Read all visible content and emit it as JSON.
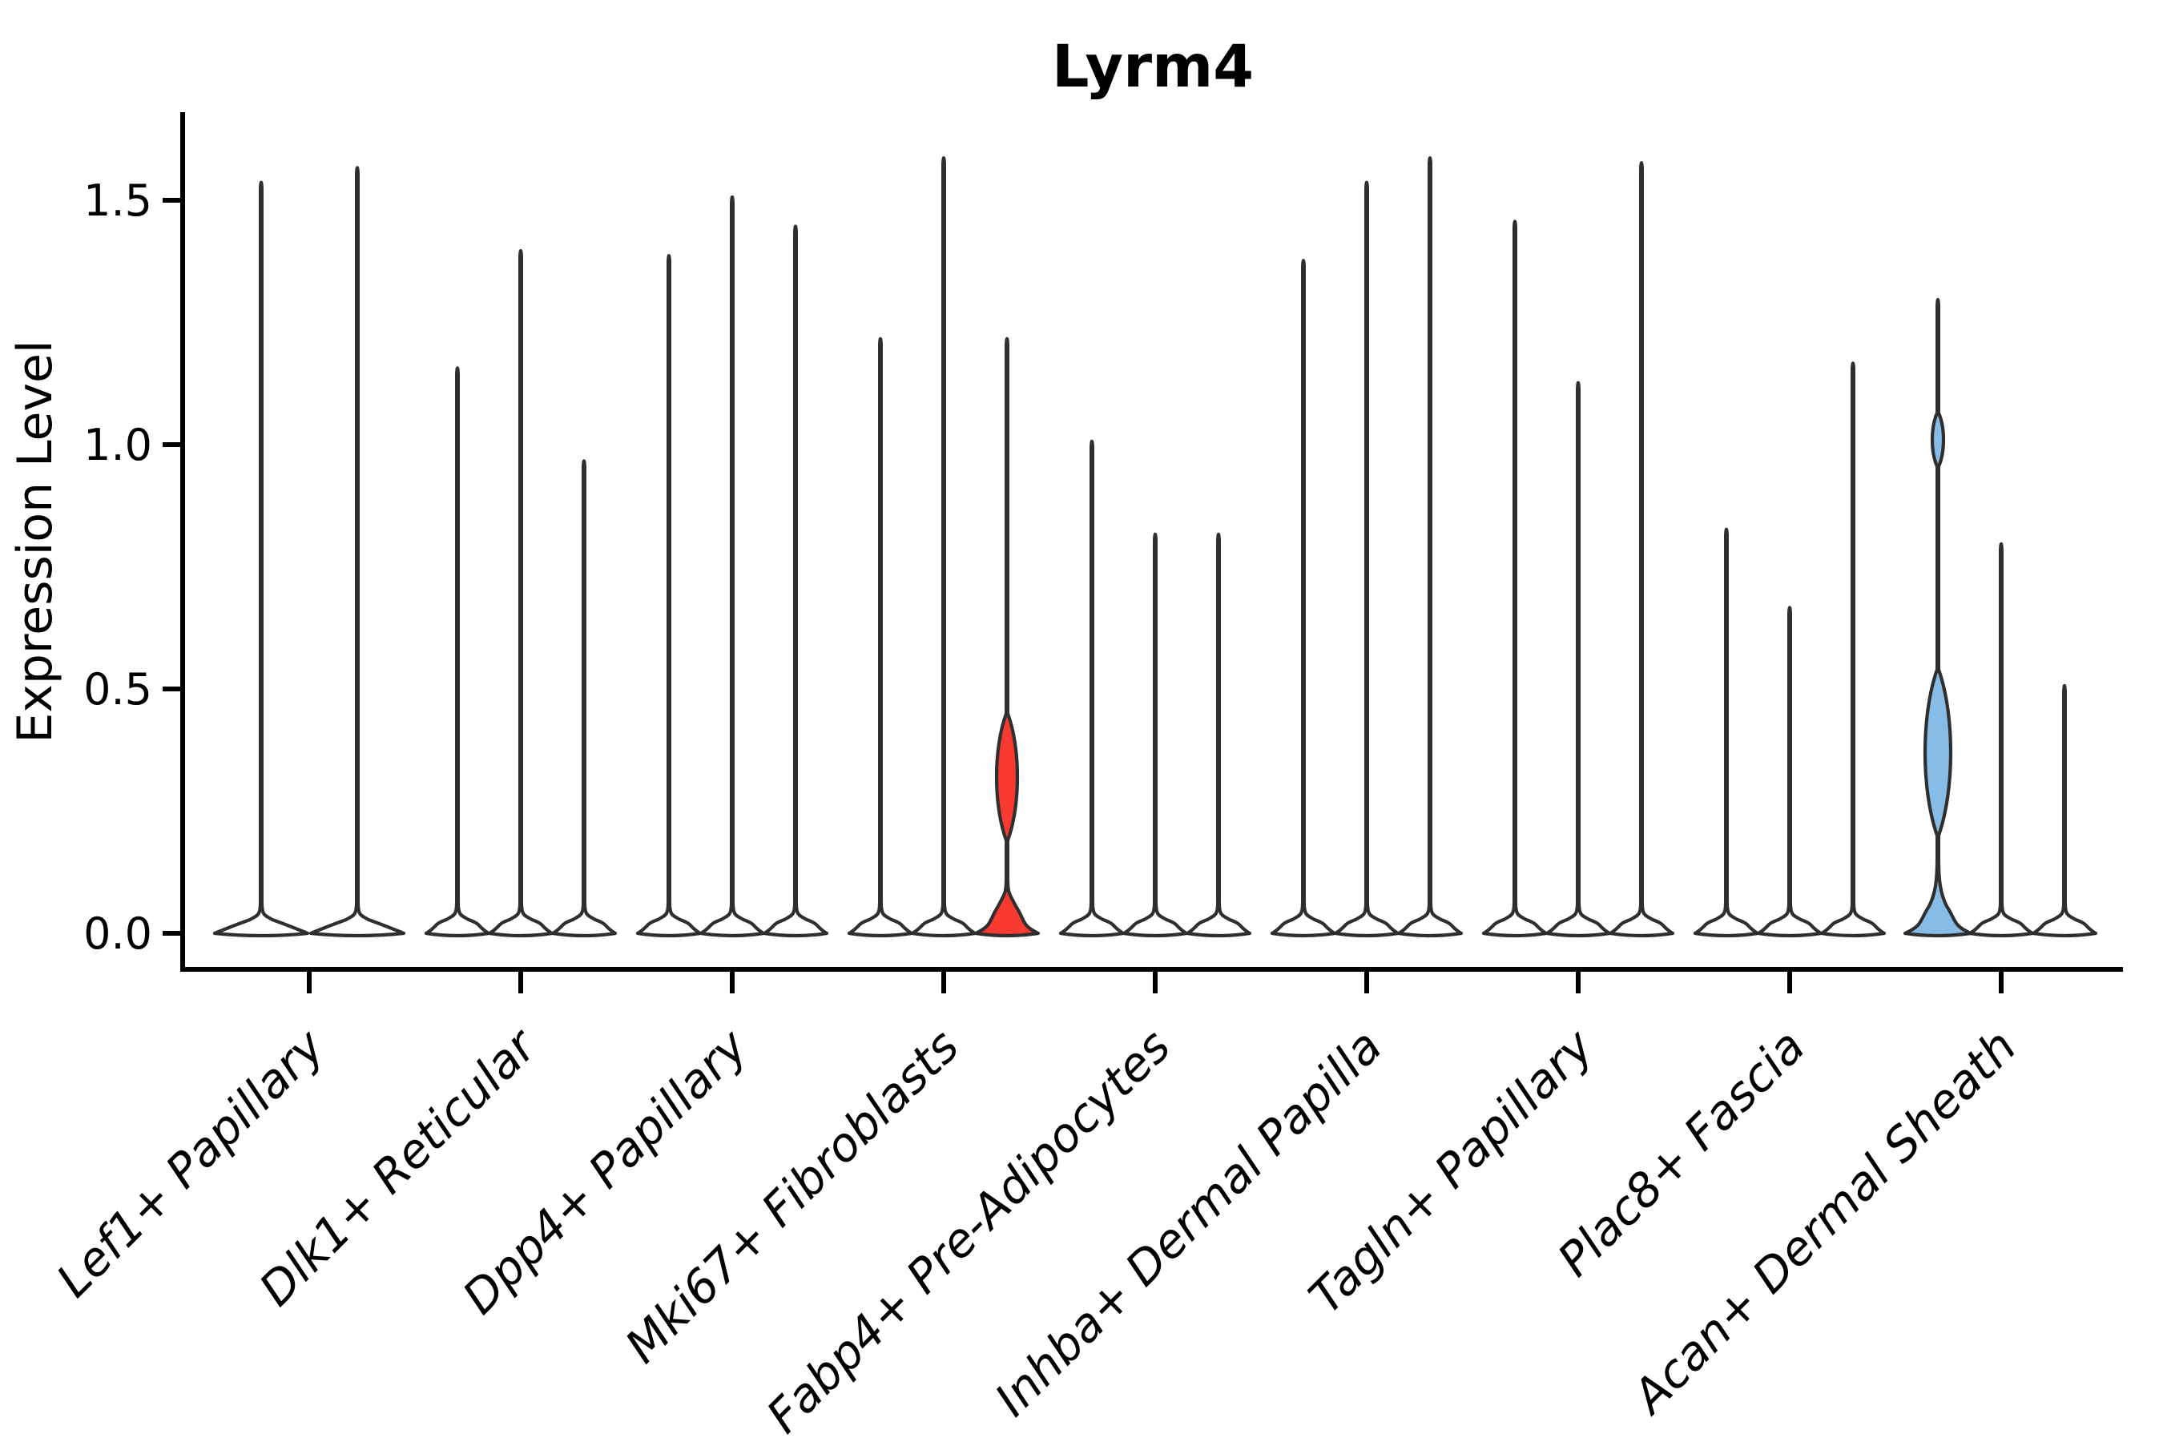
{
  "chart_data": {
    "type": "violin",
    "title": "Lyrm4",
    "ylabel": "Expression Level",
    "xlabel": "",
    "legend": "none",
    "grid": false,
    "ylim": [
      -0.07,
      1.71
    ],
    "ytick_values": [
      0.0,
      0.5,
      1.0,
      1.5
    ],
    "ytick_labels": [
      "0.0",
      "0.5",
      "1.0",
      "1.5"
    ],
    "categories": [
      "Lef1+ Papillary",
      "Dlk1+ Reticular",
      "Dpp4+ Papillary",
      "Mki67+ Fibroblasts",
      "Fabp4+ Pre-Adipocytes",
      "Inhba+ Dermal Papilla",
      "Tagln+ Papillary",
      "Plac8+ Fascia",
      "Acan+ Dermal Sheath"
    ],
    "colors": {
      "background": "#ffffff",
      "axis": "#000000",
      "violin_outline": "#2f2f2f",
      "violin_fill_default": "#ffffff",
      "highlight_red": "#f83a31",
      "highlight_blue": "#87bce6"
    },
    "description": "Violin plot of Lyrm4 expression; most violins collapse to a thin spike with nearly all mass at 0. One red highlighted violin in Mki67+ Fibroblasts and one blue highlighted violin in Acan+ Dermal Sheath show visible density bulges above 0.",
    "groups": [
      {
        "category": "Lef1+ Papillary",
        "violins": [
          {
            "offset": -60,
            "max": 1.54,
            "hw": 58
          },
          {
            "offset": 60,
            "max": 1.57,
            "hw": 58
          }
        ]
      },
      {
        "category": "Dlk1+ Reticular",
        "violins": [
          {
            "offset": -79,
            "max": 1.16
          },
          {
            "offset": 0,
            "max": 1.4
          },
          {
            "offset": 79,
            "max": 0.97
          }
        ]
      },
      {
        "category": "Dpp4+ Papillary",
        "violins": [
          {
            "offset": -79,
            "max": 1.39
          },
          {
            "offset": 0,
            "max": 1.51
          },
          {
            "offset": 79,
            "max": 1.45
          }
        ]
      },
      {
        "category": "Mki67+ Fibroblasts",
        "violins": [
          {
            "offset": -79,
            "max": 1.22
          },
          {
            "offset": 0,
            "max": 1.59
          },
          {
            "offset": 79,
            "max": 1.22,
            "fill": "highlight_red",
            "mound": true,
            "flare": 70,
            "bulges": [
              {
                "v": 0.32,
                "s": 0.13,
                "w": 13
              }
            ]
          }
        ]
      },
      {
        "category": "Fabp4+ Pre-Adipocytes",
        "violins": [
          {
            "offset": -79,
            "max": 1.01
          },
          {
            "offset": 0,
            "max": 0.82
          },
          {
            "offset": 79,
            "max": 0.82
          }
        ]
      },
      {
        "category": "Inhba+ Dermal Papilla",
        "violins": [
          {
            "offset": -79,
            "max": 1.38
          },
          {
            "offset": 0,
            "max": 1.54
          },
          {
            "offset": 79,
            "max": 1.59
          }
        ]
      },
      {
        "category": "Tagln+ Papillary",
        "violins": [
          {
            "offset": -79,
            "max": 1.46
          },
          {
            "offset": 0,
            "max": 1.13
          },
          {
            "offset": 79,
            "max": 1.58
          }
        ]
      },
      {
        "category": "Plac8+ Fascia",
        "violins": [
          {
            "offset": -79,
            "max": 0.83
          },
          {
            "offset": 0,
            "max": 0.67
          },
          {
            "offset": 79,
            "max": 1.17
          }
        ]
      },
      {
        "category": "Acan+ Dermal Sheath",
        "violins": [
          {
            "offset": -79,
            "max": 1.3,
            "fill": "highlight_blue",
            "mound": true,
            "flare": 95,
            "hw": 41,
            "bulges": [
              {
                "v": 0.37,
                "s": 0.17,
                "w": 16
              },
              {
                "v": 1.01,
                "s": 0.055,
                "w": 7
              }
            ]
          },
          {
            "offset": 0,
            "max": 0.8
          },
          {
            "offset": 79,
            "max": 0.51
          }
        ]
      }
    ]
  }
}
